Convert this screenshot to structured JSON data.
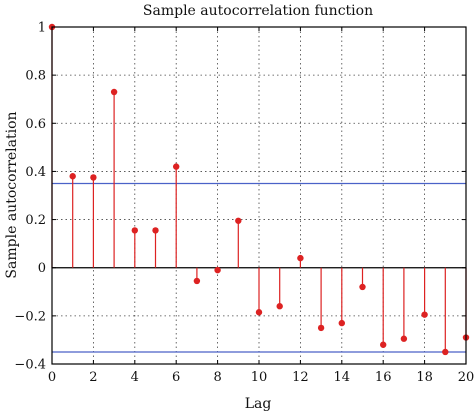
{
  "chart_data": {
    "type": "stem",
    "title": "Sample autocorrelation function",
    "xlabel": "Lag",
    "ylabel": "Sample autocorrelation",
    "xlim": [
      0,
      20
    ],
    "ylim": [
      -0.4,
      1
    ],
    "xticks": [
      0,
      2,
      4,
      6,
      8,
      10,
      12,
      14,
      16,
      18,
      20
    ],
    "yticks": [
      -0.4,
      -0.2,
      0,
      0.2,
      0.4,
      0.6,
      0.8,
      1
    ],
    "ytick_labels": [
      "−0.4",
      "−0.2",
      "0",
      "0.2",
      "0.4",
      "0.6",
      "0.8",
      "1"
    ],
    "grid": true,
    "grid_style": "dotted",
    "lags": [
      0,
      1,
      2,
      3,
      4,
      5,
      6,
      7,
      8,
      9,
      10,
      11,
      12,
      13,
      14,
      15,
      16,
      17,
      18,
      19,
      20
    ],
    "values": [
      1.0,
      0.38,
      0.375,
      0.73,
      0.155,
      0.155,
      0.42,
      -0.055,
      -0.01,
      0.195,
      -0.185,
      -0.16,
      0.04,
      -0.25,
      -0.23,
      -0.08,
      -0.32,
      -0.295,
      -0.195,
      -0.35,
      -0.29
    ],
    "confidence_bounds": [
      0.35,
      -0.35
    ],
    "colors": {
      "stem": "#dd2222",
      "marker": "#dd2222",
      "bounds": "#4a62c8",
      "zero_line": "#000000",
      "grid": "#444444"
    }
  }
}
